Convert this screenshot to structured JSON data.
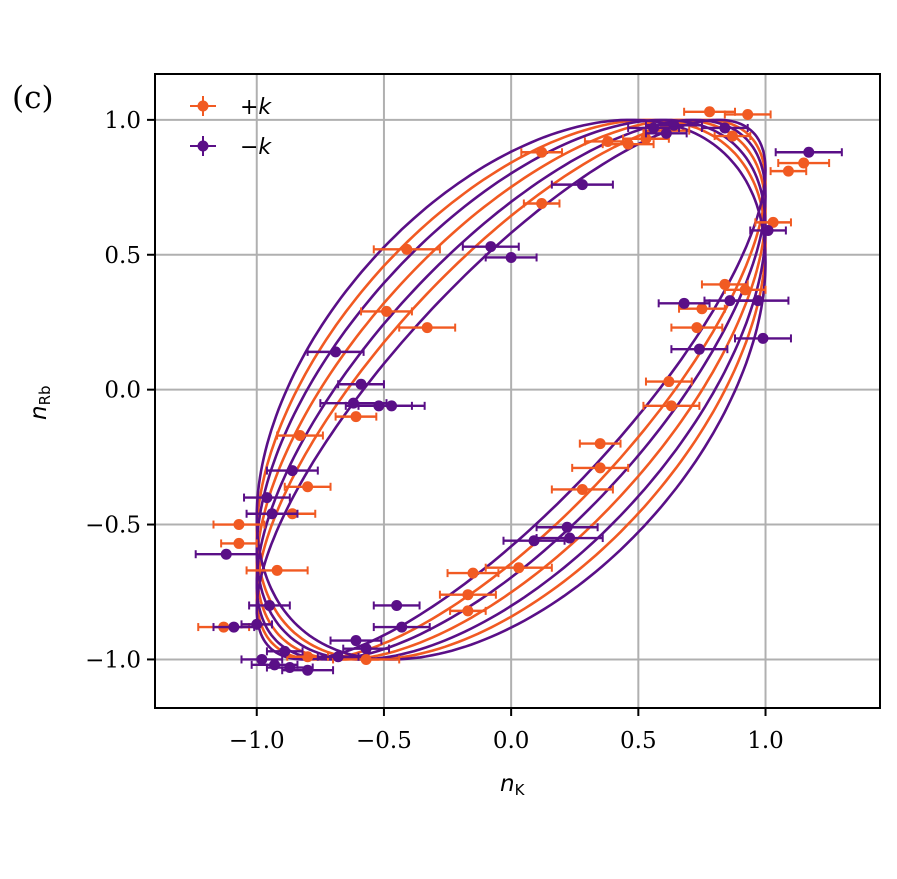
{
  "chart_data": {
    "type": "scatter",
    "panel_label": "(c)",
    "xlabel": {
      "main": "n",
      "sub": "K"
    },
    "ylabel": {
      "main": "n",
      "sub": "Rb"
    },
    "xlim": [
      -1.4,
      1.45
    ],
    "ylim": [
      -1.18,
      1.17
    ],
    "xticks": [
      -1.0,
      -0.5,
      0.0,
      0.5,
      1.0
    ],
    "xtick_labels": [
      "−1.0",
      "−0.5",
      "0.0",
      "0.5",
      "1.0"
    ],
    "yticks": [
      -1.0,
      -0.5,
      0.0,
      0.5,
      1.0
    ],
    "ytick_labels": [
      "−1.0",
      "−0.5",
      "0.0",
      "0.5",
      "1.0"
    ],
    "grid": true,
    "legend_position": "top-left",
    "series": [
      {
        "name": "+k",
        "color": "#f15a22",
        "points": [
          [
            0.78,
            1.03,
            0.1
          ],
          [
            0.93,
            1.02,
            0.09
          ],
          [
            0.38,
            0.92,
            0.09
          ],
          [
            0.46,
            0.91,
            0.1
          ],
          [
            0.53,
            0.93,
            0.09
          ],
          [
            0.61,
            0.96,
            0.09
          ],
          [
            0.87,
            0.94,
            0.07
          ],
          [
            0.12,
            0.88,
            0.08
          ],
          [
            1.15,
            0.84,
            0.1
          ],
          [
            1.09,
            0.81,
            0.07
          ],
          [
            0.12,
            0.69,
            0.07
          ],
          [
            1.03,
            0.62,
            0.07
          ],
          [
            -0.41,
            0.52,
            0.13
          ],
          [
            -0.49,
            0.29,
            0.1
          ],
          [
            -0.33,
            0.23,
            0.11
          ],
          [
            0.84,
            0.39,
            0.09
          ],
          [
            0.92,
            0.37,
            0.08
          ],
          [
            0.75,
            0.3,
            0.09
          ],
          [
            0.73,
            0.23,
            0.1
          ],
          [
            0.62,
            0.03,
            0.09
          ],
          [
            0.63,
            -0.06,
            0.11
          ],
          [
            -0.61,
            -0.1,
            0.08
          ],
          [
            -0.83,
            -0.17,
            0.09
          ],
          [
            0.35,
            -0.2,
            0.08
          ],
          [
            0.35,
            -0.29,
            0.11
          ],
          [
            -0.8,
            -0.36,
            0.09
          ],
          [
            0.28,
            -0.37,
            0.12
          ],
          [
            -0.86,
            -0.46,
            0.09
          ],
          [
            -1.07,
            -0.5,
            0.1
          ],
          [
            -1.07,
            -0.57,
            0.07
          ],
          [
            -0.92,
            -0.67,
            0.12
          ],
          [
            -0.15,
            -0.68,
            0.1
          ],
          [
            0.03,
            -0.66,
            0.13
          ],
          [
            -0.17,
            -0.76,
            0.11
          ],
          [
            -0.17,
            -0.82,
            0.07
          ],
          [
            -1.13,
            -0.88,
            0.1
          ],
          [
            -0.8,
            -0.99,
            0.08
          ],
          [
            -0.57,
            -1.0,
            0.13
          ]
        ]
      },
      {
        "name": "−k",
        "color": "#5a0f87",
        "points": [
          [
            0.64,
            0.98,
            0.11
          ],
          [
            0.56,
            0.97,
            0.1
          ],
          [
            0.61,
            0.95,
            0.08
          ],
          [
            0.84,
            0.97,
            0.09
          ],
          [
            1.17,
            0.88,
            0.13
          ],
          [
            0.28,
            0.76,
            0.12
          ],
          [
            -0.08,
            0.53,
            0.11
          ],
          [
            0.0,
            0.49,
            0.1
          ],
          [
            1.01,
            0.59,
            0.07
          ],
          [
            0.86,
            0.33,
            0.1
          ],
          [
            0.97,
            0.33,
            0.12
          ],
          [
            0.68,
            0.32,
            0.1
          ],
          [
            0.74,
            0.15,
            0.11
          ],
          [
            0.99,
            0.19,
            0.11
          ],
          [
            -0.69,
            0.14,
            0.11
          ],
          [
            -0.59,
            0.02,
            0.09
          ],
          [
            -0.62,
            -0.05,
            0.13
          ],
          [
            -0.52,
            -0.06,
            0.13
          ],
          [
            -0.47,
            -0.06,
            0.13
          ],
          [
            -0.86,
            -0.3,
            0.1
          ],
          [
            -0.96,
            -0.4,
            0.09
          ],
          [
            -0.94,
            -0.46,
            0.1
          ],
          [
            0.22,
            -0.51,
            0.12
          ],
          [
            0.23,
            -0.55,
            0.13
          ],
          [
            0.09,
            -0.56,
            0.12
          ],
          [
            -1.12,
            -0.61,
            0.12
          ],
          [
            -0.45,
            -0.8,
            0.09
          ],
          [
            -0.95,
            -0.8,
            0.08
          ],
          [
            -0.43,
            -0.88,
            0.11
          ],
          [
            -1.09,
            -0.88,
            0.08
          ],
          [
            -1.0,
            -0.87,
            0.06
          ],
          [
            -0.61,
            -0.93,
            0.1
          ],
          [
            -0.57,
            -0.96,
            0.09
          ],
          [
            -0.89,
            -0.97,
            0.07
          ],
          [
            -0.68,
            -0.99,
            0.08
          ],
          [
            -0.98,
            -1.0,
            0.08
          ],
          [
            -0.93,
            -1.02,
            0.09
          ],
          [
            -0.8,
            -1.04,
            0.1
          ],
          [
            -0.87,
            -1.03,
            0.09
          ]
        ]
      }
    ],
    "fit_curves": [
      {
        "series": "+k",
        "phase": 0.7
      },
      {
        "series": "+k",
        "phase": 0.85
      },
      {
        "series": "+k",
        "phase": 1.0
      },
      {
        "series": "−k",
        "phase": 0.62
      },
      {
        "series": "−k",
        "phase": 0.77
      },
      {
        "series": "−k",
        "phase": 0.93
      },
      {
        "series": "−k",
        "phase": 1.08
      }
    ]
  }
}
